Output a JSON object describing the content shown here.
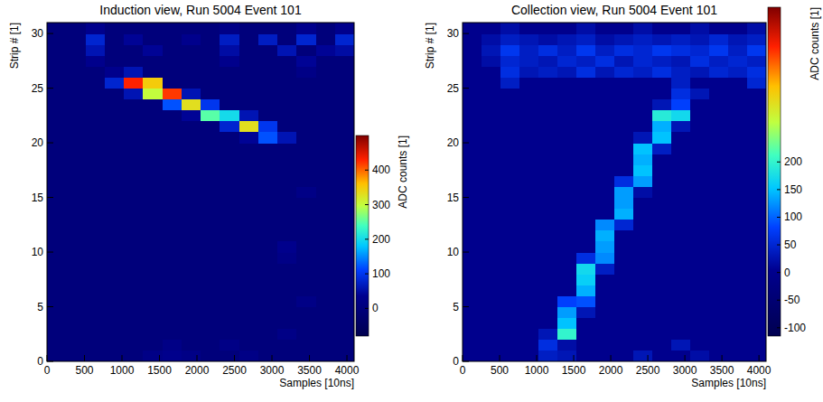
{
  "chart_data": [
    {
      "type": "heatmap",
      "title": "Induction view, Run 5004 Event 101",
      "x_label": "Samples [10ns]",
      "y_label": "Strip # [1]",
      "xlim": [
        0,
        4096
      ],
      "ylim": [
        0,
        31
      ],
      "xticks": [
        0,
        500,
        1000,
        1500,
        2000,
        2500,
        3000,
        3500,
        4000
      ],
      "yticks": [
        0,
        5,
        10,
        15,
        20,
        25,
        30
      ],
      "x_edges": [
        0,
        256,
        512,
        768,
        1024,
        1280,
        1536,
        1792,
        2048,
        2304,
        2560,
        2816,
        3072,
        3328,
        3584,
        3840,
        4096
      ],
      "y_edges": [
        0,
        1,
        2,
        3,
        4,
        5,
        6,
        7,
        8,
        9,
        10,
        11,
        12,
        13,
        14,
        15,
        16,
        17,
        18,
        19,
        20,
        21,
        22,
        23,
        24,
        25,
        26,
        27,
        28,
        29,
        30,
        31
      ],
      "cells": [
        [
          0,
          0,
          0,
          0,
          0,
          20,
          30,
          20,
          0,
          0,
          20,
          0,
          0,
          0,
          0,
          0
        ],
        [
          0,
          0,
          0,
          0,
          0,
          0,
          20,
          0,
          0,
          20,
          0,
          0,
          0,
          0,
          0,
          0
        ],
        [
          0,
          0,
          0,
          0,
          0,
          0,
          0,
          0,
          0,
          0,
          0,
          0,
          20,
          0,
          0,
          0
        ],
        [
          0,
          0,
          0,
          0,
          0,
          0,
          0,
          0,
          0,
          0,
          0,
          0,
          0,
          0,
          0,
          0
        ],
        [
          0,
          0,
          0,
          0,
          0,
          0,
          0,
          0,
          0,
          0,
          0,
          0,
          0,
          0,
          0,
          0
        ],
        [
          0,
          0,
          0,
          0,
          0,
          0,
          0,
          0,
          0,
          0,
          0,
          0,
          0,
          20,
          0,
          0
        ],
        [
          0,
          0,
          0,
          0,
          0,
          0,
          0,
          0,
          0,
          0,
          0,
          0,
          0,
          0,
          0,
          0
        ],
        [
          0,
          0,
          0,
          0,
          0,
          0,
          0,
          0,
          0,
          0,
          0,
          0,
          0,
          0,
          0,
          0
        ],
        [
          0,
          0,
          0,
          0,
          0,
          0,
          0,
          0,
          0,
          0,
          0,
          0,
          0,
          0,
          0,
          0
        ],
        [
          0,
          0,
          0,
          0,
          0,
          0,
          0,
          0,
          0,
          0,
          0,
          0,
          20,
          0,
          0,
          0
        ],
        [
          0,
          0,
          0,
          0,
          0,
          0,
          0,
          0,
          0,
          0,
          0,
          0,
          30,
          0,
          0,
          0
        ],
        [
          0,
          0,
          0,
          0,
          0,
          0,
          0,
          0,
          0,
          0,
          0,
          0,
          0,
          0,
          0,
          0
        ],
        [
          0,
          0,
          0,
          0,
          0,
          0,
          0,
          0,
          0,
          0,
          0,
          0,
          0,
          0,
          0,
          0
        ],
        [
          0,
          0,
          0,
          0,
          0,
          0,
          0,
          0,
          0,
          0,
          0,
          0,
          0,
          0,
          0,
          0
        ],
        [
          0,
          0,
          0,
          0,
          0,
          0,
          0,
          0,
          0,
          0,
          0,
          0,
          0,
          0,
          0,
          0
        ],
        [
          0,
          0,
          0,
          0,
          0,
          0,
          0,
          0,
          0,
          0,
          0,
          0,
          0,
          20,
          0,
          0
        ],
        [
          0,
          0,
          0,
          0,
          0,
          0,
          0,
          0,
          0,
          0,
          0,
          0,
          0,
          0,
          0,
          0
        ],
        [
          0,
          0,
          0,
          0,
          0,
          0,
          0,
          0,
          0,
          0,
          0,
          0,
          0,
          0,
          0,
          0
        ],
        [
          0,
          0,
          0,
          0,
          0,
          0,
          0,
          0,
          0,
          0,
          0,
          0,
          0,
          0,
          0,
          0
        ],
        [
          0,
          0,
          0,
          0,
          0,
          0,
          0,
          0,
          0,
          0,
          0,
          0,
          0,
          0,
          0,
          0
        ],
        [
          0,
          0,
          0,
          0,
          0,
          0,
          0,
          0,
          0,
          0,
          40,
          120,
          60,
          0,
          0,
          0
        ],
        [
          0,
          0,
          0,
          0,
          0,
          0,
          0,
          0,
          0,
          80,
          330,
          100,
          0,
          0,
          0,
          0
        ],
        [
          0,
          0,
          0,
          0,
          0,
          0,
          0,
          40,
          250,
          200,
          60,
          0,
          0,
          0,
          0,
          0
        ],
        [
          0,
          0,
          0,
          0,
          0,
          0,
          120,
          330,
          100,
          0,
          0,
          0,
          0,
          0,
          0,
          0
        ],
        [
          0,
          0,
          0,
          0,
          60,
          300,
          420,
          60,
          0,
          0,
          0,
          0,
          0,
          0,
          0,
          0
        ],
        [
          0,
          0,
          0,
          80,
          430,
          350,
          0,
          0,
          0,
          0,
          0,
          0,
          0,
          0,
          0,
          0
        ],
        [
          0,
          0,
          0,
          30,
          60,
          0,
          0,
          0,
          0,
          0,
          0,
          0,
          0,
          20,
          0,
          0
        ],
        [
          0,
          0,
          30,
          0,
          0,
          0,
          0,
          0,
          0,
          30,
          0,
          0,
          0,
          40,
          0,
          0
        ],
        [
          0,
          0,
          60,
          0,
          0,
          40,
          0,
          0,
          0,
          50,
          0,
          0,
          60,
          0,
          40,
          50
        ],
        [
          0,
          0,
          80,
          0,
          40,
          0,
          0,
          30,
          0,
          70,
          0,
          70,
          0,
          80,
          0,
          80
        ],
        [
          0,
          0,
          30,
          0,
          0,
          0,
          0,
          0,
          0,
          20,
          0,
          0,
          0,
          30,
          0,
          30
        ]
      ],
      "colorbar": {
        "label": "ADC counts [1]",
        "zlim": [
          -80,
          500
        ],
        "zticks": [
          0,
          100,
          200,
          300,
          400
        ]
      }
    },
    {
      "type": "heatmap",
      "title": "Collection view, Run 5004 Event 101",
      "x_label": "Samples [10ns]",
      "y_label": "Strip # [1]",
      "xlim": [
        0,
        4096
      ],
      "ylim": [
        0,
        31
      ],
      "xticks": [
        0,
        500,
        1000,
        1500,
        2000,
        2500,
        3000,
        3500,
        4000
      ],
      "yticks": [
        0,
        5,
        10,
        15,
        20,
        25,
        30
      ],
      "x_edges": [
        0,
        256,
        512,
        768,
        1024,
        1280,
        1536,
        1792,
        2048,
        2304,
        2560,
        2816,
        3072,
        3328,
        3584,
        3840,
        4096
      ],
      "y_edges": [
        0,
        1,
        2,
        3,
        4,
        5,
        6,
        7,
        8,
        9,
        10,
        11,
        12,
        13,
        14,
        15,
        16,
        17,
        18,
        19,
        20,
        21,
        22,
        23,
        24,
        25,
        26,
        27,
        28,
        29,
        30,
        31
      ],
      "cells": [
        [
          0,
          0,
          0,
          0,
          40,
          30,
          0,
          0,
          0,
          30,
          0,
          0,
          20,
          0,
          0,
          0
        ],
        [
          0,
          0,
          0,
          0,
          60,
          20,
          0,
          0,
          0,
          0,
          0,
          30,
          0,
          0,
          0,
          0
        ],
        [
          0,
          0,
          0,
          0,
          30,
          200,
          0,
          0,
          0,
          0,
          0,
          0,
          0,
          0,
          0,
          0
        ],
        [
          0,
          0,
          0,
          0,
          0,
          150,
          0,
          0,
          0,
          0,
          0,
          0,
          0,
          0,
          0,
          0
        ],
        [
          0,
          0,
          0,
          0,
          0,
          130,
          30,
          0,
          0,
          0,
          0,
          0,
          0,
          0,
          0,
          0
        ],
        [
          0,
          0,
          0,
          0,
          0,
          80,
          90,
          0,
          0,
          0,
          0,
          0,
          0,
          0,
          0,
          0
        ],
        [
          0,
          0,
          0,
          0,
          0,
          0,
          140,
          0,
          0,
          0,
          0,
          0,
          0,
          0,
          0,
          0
        ],
        [
          0,
          0,
          0,
          0,
          0,
          0,
          160,
          0,
          0,
          0,
          0,
          0,
          0,
          0,
          0,
          0
        ],
        [
          0,
          0,
          0,
          0,
          0,
          0,
          170,
          40,
          0,
          0,
          0,
          0,
          0,
          0,
          0,
          0
        ],
        [
          0,
          0,
          0,
          0,
          0,
          0,
          60,
          120,
          0,
          0,
          0,
          0,
          0,
          0,
          0,
          0
        ],
        [
          0,
          0,
          0,
          0,
          0,
          0,
          0,
          130,
          0,
          0,
          0,
          0,
          0,
          0,
          0,
          0
        ],
        [
          0,
          0,
          0,
          0,
          0,
          0,
          0,
          140,
          0,
          0,
          0,
          0,
          0,
          0,
          0,
          0
        ],
        [
          0,
          0,
          0,
          0,
          0,
          0,
          0,
          120,
          50,
          0,
          0,
          0,
          0,
          0,
          0,
          0
        ],
        [
          0,
          0,
          0,
          0,
          0,
          0,
          0,
          0,
          140,
          0,
          0,
          0,
          0,
          0,
          0,
          0
        ],
        [
          0,
          0,
          0,
          0,
          0,
          0,
          0,
          0,
          130,
          0,
          0,
          0,
          0,
          0,
          0,
          0
        ],
        [
          0,
          0,
          0,
          0,
          0,
          0,
          0,
          0,
          130,
          20,
          0,
          0,
          0,
          0,
          0,
          0
        ],
        [
          0,
          0,
          0,
          0,
          0,
          0,
          0,
          0,
          60,
          130,
          0,
          0,
          0,
          0,
          0,
          0
        ],
        [
          0,
          0,
          0,
          0,
          0,
          0,
          0,
          0,
          0,
          150,
          0,
          0,
          0,
          0,
          0,
          0
        ],
        [
          0,
          0,
          0,
          0,
          0,
          0,
          0,
          0,
          0,
          140,
          0,
          0,
          0,
          0,
          0,
          0
        ],
        [
          0,
          0,
          0,
          0,
          0,
          0,
          0,
          0,
          0,
          150,
          40,
          0,
          0,
          0,
          0,
          0
        ],
        [
          0,
          0,
          0,
          0,
          0,
          0,
          0,
          0,
          0,
          30,
          150,
          0,
          0,
          0,
          0,
          0
        ],
        [
          0,
          0,
          0,
          0,
          0,
          0,
          0,
          0,
          0,
          0,
          140,
          30,
          0,
          0,
          0,
          0
        ],
        [
          0,
          0,
          0,
          0,
          0,
          0,
          0,
          0,
          0,
          0,
          190,
          170,
          0,
          0,
          0,
          0
        ],
        [
          0,
          0,
          0,
          0,
          0,
          0,
          0,
          0,
          0,
          0,
          30,
          80,
          0,
          0,
          0,
          0
        ],
        [
          0,
          0,
          0,
          0,
          0,
          0,
          0,
          0,
          0,
          0,
          0,
          60,
          30,
          0,
          0,
          0
        ],
        [
          0,
          0,
          40,
          0,
          0,
          0,
          0,
          0,
          0,
          0,
          0,
          40,
          0,
          0,
          0,
          50
        ],
        [
          0,
          0,
          60,
          30,
          40,
          30,
          60,
          30,
          50,
          40,
          60,
          40,
          30,
          50,
          40,
          60
        ],
        [
          0,
          20,
          50,
          40,
          30,
          50,
          40,
          60,
          30,
          50,
          40,
          30,
          60,
          40,
          50,
          40
        ],
        [
          0,
          30,
          70,
          40,
          60,
          40,
          70,
          40,
          60,
          50,
          70,
          60,
          50,
          70,
          40,
          70
        ],
        [
          0,
          20,
          40,
          30,
          20,
          30,
          40,
          20,
          30,
          40,
          30,
          40,
          30,
          50,
          30,
          40
        ],
        [
          0,
          0,
          20,
          0,
          0,
          0,
          20,
          0,
          0,
          20,
          0,
          0,
          20,
          0,
          0,
          20
        ]
      ],
      "colorbar": {
        "label": "ADC counts [1]",
        "zlim": [
          -115,
          480
        ],
        "zticks": [
          -100,
          -50,
          0,
          50,
          100,
          150,
          200
        ]
      }
    }
  ]
}
